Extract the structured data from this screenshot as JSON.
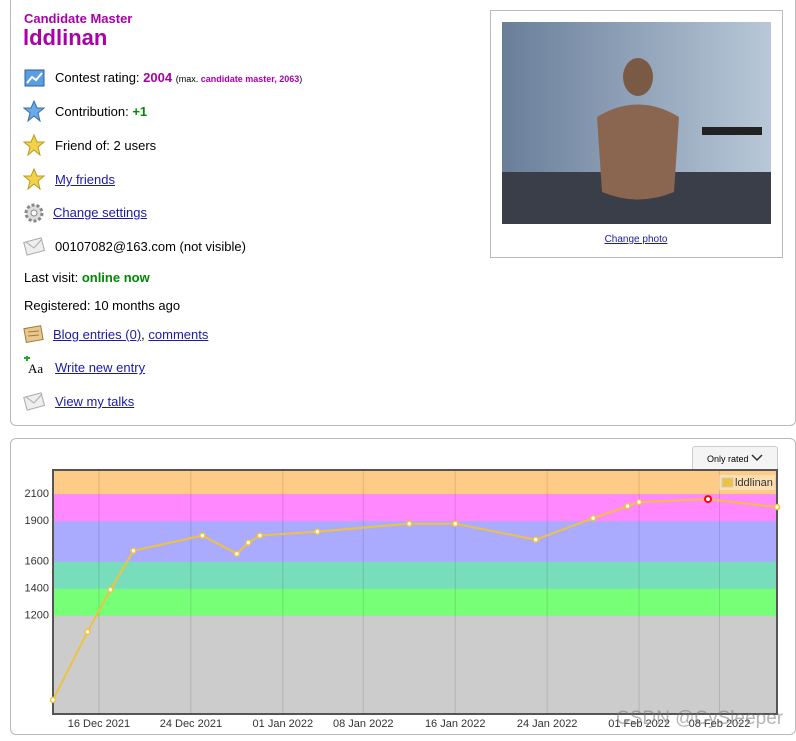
{
  "profile": {
    "rank": "Candidate Master",
    "handle": "lddlinan",
    "rating_label": "Contest rating:",
    "rating": 2004,
    "max_prefix": "(max.",
    "max_rank_rating": "candidate master, 2063",
    "max_suffix": ")",
    "contribution_label": "Contribution:",
    "contribution": "+1",
    "friend_of": "Friend of: 2 users",
    "my_friends": "My friends",
    "change_settings": "Change settings",
    "email": "00107082@163.com (not visible)",
    "last_visit_label": "Last visit:",
    "last_visit": "online now",
    "registered": "Registered: 10 months ago",
    "blog_entries": "Blog entries (0)",
    "comma": ",",
    "comments": "comments",
    "write_entry": "Write new entry",
    "talks": "View my talks",
    "change_photo": "Change photo"
  },
  "chart_data": {
    "type": "line",
    "filter_button": "Only rated",
    "legend": "top-right",
    "x": [
      "2021-12-12",
      "2021-12-15",
      "2021-12-17",
      "2021-12-19",
      "2021-12-25",
      "2021-12-28",
      "2021-12-29",
      "2021-12-30",
      "2022-01-04",
      "2022-01-12",
      "2022-01-16",
      "2022-01-23",
      "2022-01-28",
      "2022-01-31",
      "2022-02-01",
      "2022-02-07",
      "2022-02-13"
    ],
    "series": [
      {
        "name": "lddlinan",
        "color": "#edc240",
        "values": [
          578,
          1081,
          1393,
          1681,
          1793,
          1659,
          1741,
          1793,
          1822,
          1881,
          1881,
          1763,
          1922,
          2011,
          2041,
          2063,
          2004
        ]
      }
    ],
    "highlight": {
      "index": 15,
      "color": "#ff0000"
    },
    "xlim": [
      "2021-12-12",
      "2022-02-13"
    ],
    "xticks": [
      {
        "value": "2021-12-16",
        "label": "16 Dec 2021"
      },
      {
        "value": "2021-12-24",
        "label": "24 Dec 2021"
      },
      {
        "value": "2022-01-01",
        "label": "01 Jan 2022"
      },
      {
        "value": "2022-01-08",
        "label": "08 Jan 2022"
      },
      {
        "value": "2022-01-16",
        "label": "16 Jan 2022"
      },
      {
        "value": "2022-01-24",
        "label": "24 Jan 2022"
      },
      {
        "value": "2022-02-01",
        "label": "01 Feb 2022"
      },
      {
        "value": "2022-02-08",
        "label": "08 Feb 2022"
      }
    ],
    "ylim": [
      474,
      2278
    ],
    "yticks": [
      1200,
      1400,
      1600,
      1900,
      2100
    ],
    "background": "#cccccc",
    "bands": [
      {
        "from": 1200,
        "color": "#77ff77"
      },
      {
        "from": 1400,
        "color": "#77ddbb"
      },
      {
        "from": 1600,
        "color": "#aaaaff"
      },
      {
        "from": 1900,
        "color": "#ff88ff"
      },
      {
        "from": 2100,
        "color": "#ffcc88"
      }
    ]
  },
  "watermark": "CSDN @CySleeper"
}
